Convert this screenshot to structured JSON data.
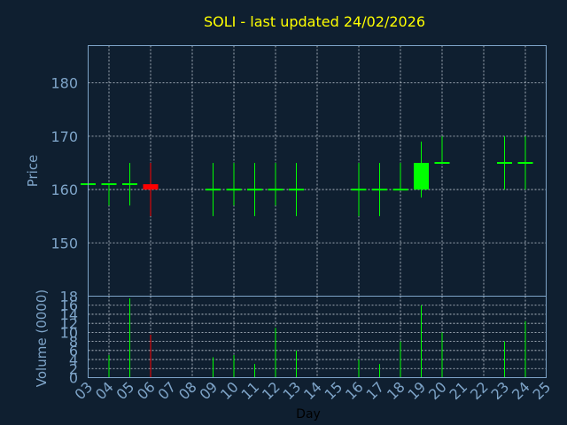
{
  "chart_data": {
    "type": "candlestick",
    "title": "SOLI - last updated 24/02/2026",
    "xlabel": "Day",
    "price_panel": {
      "ylabel": "Price",
      "ylim": [
        140,
        187
      ],
      "yticks": [
        150,
        160,
        170,
        180
      ],
      "grid": true
    },
    "volume_panel": {
      "ylabel": "Volume (0000)",
      "ylim": [
        0,
        18
      ],
      "yticks": [
        0,
        2,
        4,
        6,
        8,
        10,
        12,
        14,
        16,
        18
      ],
      "grid": true
    },
    "x_tick_labels": [
      "03",
      "04",
      "05",
      "06",
      "07",
      "08",
      "09",
      "10",
      "11",
      "12",
      "13",
      "14",
      "15",
      "16",
      "17",
      "18",
      "19",
      "20",
      "21",
      "22",
      "23",
      "24",
      "25"
    ],
    "candles": [
      {
        "day": "03",
        "open": 161,
        "high": 161,
        "low": 161,
        "close": 161,
        "volume": 0,
        "color": "#00ff00"
      },
      {
        "day": "04",
        "open": 161,
        "high": 161,
        "low": 157,
        "close": 161,
        "volume": 5,
        "color": "#00ff00"
      },
      {
        "day": "05",
        "open": 161,
        "high": 165,
        "low": 157,
        "close": 161,
        "volume": 17.5,
        "color": "#00ff00"
      },
      {
        "day": "06",
        "open": 161,
        "high": 165,
        "low": 155,
        "close": 160,
        "volume": 9.5,
        "color": "#ff0000"
      },
      {
        "day": "09",
        "open": 160,
        "high": 165,
        "low": 155,
        "close": 160,
        "volume": 4.5,
        "color": "#00ff00"
      },
      {
        "day": "10",
        "open": 160,
        "high": 165,
        "low": 157,
        "close": 160,
        "volume": 5,
        "color": "#00ff00"
      },
      {
        "day": "11",
        "open": 160,
        "high": 165,
        "low": 155,
        "close": 160,
        "volume": 3,
        "color": "#00ff00"
      },
      {
        "day": "12",
        "open": 160,
        "high": 165,
        "low": 157,
        "close": 160,
        "volume": 11,
        "color": "#00ff00"
      },
      {
        "day": "13",
        "open": 160,
        "high": 165,
        "low": 155,
        "close": 160,
        "volume": 6,
        "color": "#00ff00"
      },
      {
        "day": "16",
        "open": 160,
        "high": 165,
        "low": 155,
        "close": 160,
        "volume": 4,
        "color": "#00ff00"
      },
      {
        "day": "17",
        "open": 160,
        "high": 165,
        "low": 155,
        "close": 160,
        "volume": 3,
        "color": "#00ff00"
      },
      {
        "day": "18",
        "open": 160,
        "high": 165,
        "low": 160,
        "close": 160,
        "volume": 8,
        "color": "#00ff00"
      },
      {
        "day": "19",
        "open": 160,
        "high": 169,
        "low": 158.5,
        "close": 165,
        "volume": 16,
        "color": "#00ff00"
      },
      {
        "day": "20",
        "open": 165,
        "high": 170,
        "low": 165,
        "close": 165,
        "volume": 10,
        "color": "#00ff00"
      },
      {
        "day": "23",
        "open": 165,
        "high": 170,
        "low": 160,
        "close": 165,
        "volume": 8,
        "color": "#00ff00"
      },
      {
        "day": "24",
        "open": 165,
        "high": 170,
        "low": 160,
        "close": 165,
        "volume": 12.5,
        "color": "#00ff00"
      }
    ],
    "colors": {
      "background": "#0f1f30",
      "title": "#ffff00",
      "axis_text": "#7ea4c8",
      "up": "#00ff00",
      "down": "#ff0000"
    }
  }
}
